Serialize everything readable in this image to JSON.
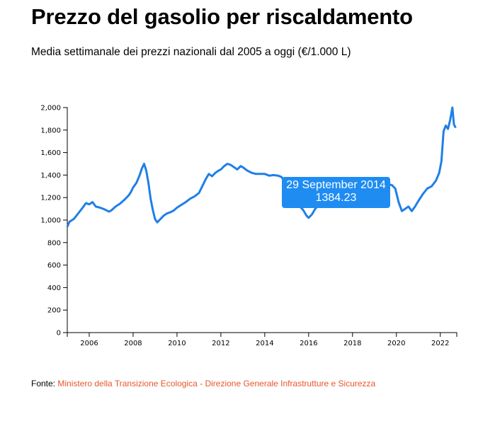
{
  "header": {
    "title": "Prezzo del gasolio per riscaldamento",
    "subtitle": "Media settimanale dei prezzi nazionali dal 2005 a oggi (€/1.000 L)"
  },
  "tooltip": {
    "date": "29 September 2014",
    "value": "1384.23"
  },
  "source": {
    "prefix": "Fonte: ",
    "link_text": "Ministero della Transizione Ecologica - Direzione Generale Infrastrutture e Sicurezza",
    "link_color": "#e8552b"
  },
  "chart_data": {
    "type": "line",
    "title": "Prezzo del gasolio per riscaldamento",
    "subtitle": "Media settimanale dei prezzi nazionali dal 2005 a oggi (€/1.000 L)",
    "xlabel": "",
    "ylabel": "",
    "xlim": [
      2005.0,
      2022.75
    ],
    "ylim": [
      0,
      2000
    ],
    "x_ticks": [
      "2006",
      "2008",
      "2010",
      "2012",
      "2014",
      "2016",
      "2018",
      "2020",
      "2022"
    ],
    "y_ticks": [
      "0",
      "200",
      "400",
      "600",
      "800",
      "1,000",
      "1,200",
      "1,400",
      "1,600",
      "1,800",
      "2,000"
    ],
    "line_color": "#1f7fe6",
    "grid": false,
    "series": [
      {
        "x": [
          2005.0,
          2005.1,
          2005.3,
          2005.5,
          2005.7,
          2005.85,
          2006.0,
          2006.15,
          2006.3,
          2006.5,
          2006.7,
          2006.9,
          2007.0,
          2007.2,
          2007.4,
          2007.6,
          2007.8,
          2007.9,
          2008.0,
          2008.15,
          2008.3,
          2008.4,
          2008.5,
          2008.6,
          2008.7,
          2008.8,
          2008.9,
          2009.0,
          2009.1,
          2009.25,
          2009.4,
          2009.55,
          2009.7,
          2009.85,
          2010.0,
          2010.2,
          2010.4,
          2010.6,
          2010.8,
          2011.0,
          2011.15,
          2011.3,
          2011.45,
          2011.6,
          2011.75,
          2011.9,
          2012.0,
          2012.15,
          2012.3,
          2012.45,
          2012.6,
          2012.75,
          2012.9,
          2013.0,
          2013.2,
          2013.4,
          2013.6,
          2013.8,
          2014.0,
          2014.2,
          2014.4,
          2014.6,
          2014.75,
          2014.9,
          2015.0,
          2015.15,
          2015.3,
          2015.45,
          2015.6,
          2015.75,
          2015.9,
          2016.0,
          2016.15,
          2016.3,
          2016.5,
          2016.7,
          2016.9,
          2017.0,
          2017.2,
          2017.4,
          2017.6,
          2017.8,
          2018.0,
          2018.2,
          2018.4,
          2018.6,
          2018.8,
          2019.0,
          2019.2,
          2019.4,
          2019.6,
          2019.8,
          2019.95,
          2020.1,
          2020.25,
          2020.4,
          2020.55,
          2020.7,
          2020.85,
          2021.0,
          2021.2,
          2021.4,
          2021.6,
          2021.8,
          2021.95,
          2022.05,
          2022.15,
          2022.25,
          2022.35,
          2022.45,
          2022.55,
          2022.62,
          2022.7
        ],
        "y": [
          940,
          985,
          1010,
          1060,
          1110,
          1150,
          1140,
          1160,
          1120,
          1110,
          1095,
          1075,
          1085,
          1120,
          1145,
          1180,
          1220,
          1250,
          1290,
          1330,
          1400,
          1460,
          1500,
          1440,
          1330,
          1190,
          1090,
          1010,
          980,
          1010,
          1040,
          1060,
          1070,
          1085,
          1110,
          1135,
          1160,
          1190,
          1210,
          1240,
          1300,
          1360,
          1410,
          1390,
          1420,
          1440,
          1450,
          1480,
          1500,
          1490,
          1470,
          1450,
          1480,
          1470,
          1440,
          1420,
          1410,
          1410,
          1410,
          1395,
          1400,
          1395,
          1384,
          1350,
          1250,
          1220,
          1180,
          1200,
          1120,
          1090,
          1040,
          1020,
          1050,
          1100,
          1140,
          1120,
          1150,
          1190,
          1180,
          1170,
          1210,
          1250,
          1290,
          1300,
          1320,
          1330,
          1310,
          1320,
          1340,
          1330,
          1320,
          1310,
          1280,
          1160,
          1080,
          1100,
          1120,
          1080,
          1120,
          1170,
          1230,
          1280,
          1300,
          1350,
          1420,
          1520,
          1790,
          1840,
          1810,
          1890,
          2000,
          1850,
          1820
        ]
      }
    ]
  }
}
